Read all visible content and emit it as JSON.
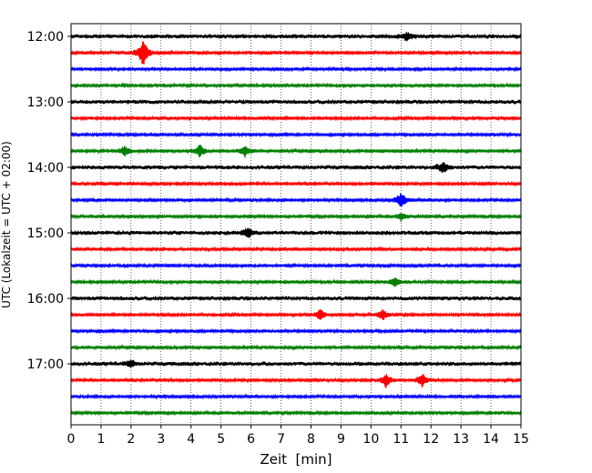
{
  "chart_data": {
    "type": "line",
    "title": "",
    "xlabel": "Zeit  [min]",
    "ylabel": "UTC (Lokalzeit = UTC + 02:00)",
    "xlim": [
      0,
      15
    ],
    "x_ticks": [
      "0",
      "1",
      "2",
      "3",
      "4",
      "5",
      "6",
      "7",
      "8",
      "9",
      "10",
      "11",
      "12",
      "13",
      "14",
      "15"
    ],
    "y_tick_labels": [
      "12:00",
      "13:00",
      "14:00",
      "15:00",
      "16:00",
      "17:00"
    ],
    "grid": "vertical dotted",
    "start_time": "12:00",
    "interval_minutes": 15,
    "row_count": 24,
    "colors": [
      "#000000",
      "#ff0000",
      "#0000ff",
      "#008000"
    ],
    "events": [
      {
        "row": 0,
        "minute": 11.2,
        "amplitude": 0.8
      },
      {
        "row": 1,
        "minute": 2.4,
        "amplitude": 2.5
      },
      {
        "row": 7,
        "minute": 1.8,
        "amplitude": 1.0
      },
      {
        "row": 7,
        "minute": 4.3,
        "amplitude": 1.2
      },
      {
        "row": 7,
        "minute": 5.8,
        "amplitude": 1.0
      },
      {
        "row": 8,
        "minute": 12.4,
        "amplitude": 1.0
      },
      {
        "row": 10,
        "minute": 11.0,
        "amplitude": 1.5
      },
      {
        "row": 11,
        "minute": 11.0,
        "amplitude": 0.8
      },
      {
        "row": 12,
        "minute": 5.9,
        "amplitude": 1.0
      },
      {
        "row": 15,
        "minute": 10.8,
        "amplitude": 0.9
      },
      {
        "row": 17,
        "minute": 8.3,
        "amplitude": 1.0
      },
      {
        "row": 17,
        "minute": 10.4,
        "amplitude": 1.0
      },
      {
        "row": 20,
        "minute": 2.0,
        "amplitude": 0.7
      },
      {
        "row": 21,
        "minute": 10.5,
        "amplitude": 1.2
      },
      {
        "row": 21,
        "minute": 11.7,
        "amplitude": 1.3
      }
    ]
  }
}
